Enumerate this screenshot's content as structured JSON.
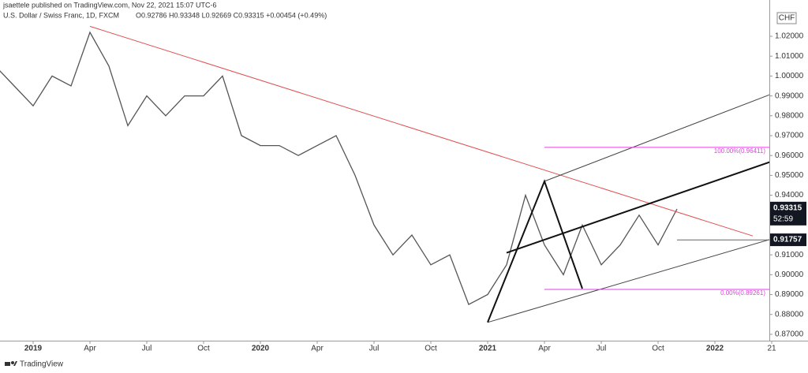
{
  "chart_data": {
    "type": "line",
    "title": "jsaettele published on TradingView.com, Nov 22, 2021 15:07 UTC-6",
    "subtitle": "U.S. Dollar / Swiss Franc, 1D, FXCM",
    "ohlc": "O0.92786 H0.93348 L0.92669 C0.93315 +0.00454 (+0.49%)",
    "currency": "CHF",
    "footer": "TradingView",
    "x": [
      "2018-11",
      "2018-12",
      "2019-01",
      "2019-02",
      "2019-03",
      "2019-04",
      "2019-05",
      "2019-06",
      "2019-07",
      "2019-08",
      "2019-09",
      "2019-10",
      "2019-11",
      "2019-12",
      "2020-01",
      "2020-02",
      "2020-03",
      "2020-04",
      "2020-05",
      "2020-06",
      "2020-07",
      "2020-08",
      "2020-09",
      "2020-10",
      "2020-11",
      "2020-12",
      "2021-01",
      "2021-02",
      "2021-03",
      "2021-04",
      "2021-05",
      "2021-06",
      "2021-07",
      "2021-08",
      "2021-09",
      "2021-10",
      "2021-11"
    ],
    "series": [
      {
        "color": "#555555",
        "values": [
          1.005,
          0.995,
          0.985,
          1.0,
          0.995,
          1.022,
          1.005,
          0.975,
          0.99,
          0.98,
          0.99,
          0.99,
          1.0,
          0.97,
          0.965,
          0.965,
          0.96,
          0.965,
          0.97,
          0.95,
          0.925,
          0.91,
          0.92,
          0.905,
          0.91,
          0.885,
          0.89,
          0.905,
          0.94,
          0.915,
          0.9,
          0.925,
          0.905,
          0.915,
          0.93,
          0.915,
          0.9331
        ]
      }
    ],
    "xlim": [
      "2018-11",
      "2022-05"
    ],
    "xticks": [
      {
        "value": "2019-01",
        "label": "2019"
      },
      {
        "value": "2019-04",
        "label": "Apr"
      },
      {
        "value": "2019-07",
        "label": "Jul"
      },
      {
        "value": "2019-10",
        "label": "Oct"
      },
      {
        "value": "2020-01",
        "label": "2020"
      },
      {
        "value": "2020-04",
        "label": "Apr"
      },
      {
        "value": "2020-07",
        "label": "Jul"
      },
      {
        "value": "2020-10",
        "label": "Oct"
      },
      {
        "value": "2021-01",
        "label": "2021"
      },
      {
        "value": "2021-04",
        "label": "Apr"
      },
      {
        "value": "2021-07",
        "label": "Jul"
      },
      {
        "value": "2021-10",
        "label": "Oct"
      },
      {
        "value": "2022-01",
        "label": "2022"
      },
      {
        "value": "2022-04",
        "label": "21"
      }
    ],
    "ylim": [
      0.8668,
      1.0343
    ],
    "yticks": [
      {
        "value": 0.87,
        "label": "0.87000"
      },
      {
        "value": 0.88,
        "label": "0.88000"
      },
      {
        "value": 0.89,
        "label": "0.89000"
      },
      {
        "value": 0.9,
        "label": "0.90000"
      },
      {
        "value": 0.91,
        "label": "0.91000"
      },
      {
        "value": 0.94,
        "label": "0.94000"
      },
      {
        "value": 0.95,
        "label": "0.95000"
      },
      {
        "value": 0.96,
        "label": "0.96000"
      },
      {
        "value": 0.97,
        "label": "0.97000"
      },
      {
        "value": 0.98,
        "label": "0.98000"
      },
      {
        "value": 0.99,
        "label": "0.99000"
      },
      {
        "value": 1.0,
        "label": "1.00000"
      },
      {
        "value": 1.01,
        "label": "1.01000"
      },
      {
        "value": 1.02,
        "label": "1.02000"
      }
    ],
    "last_price": 0.93315,
    "countdown": "52:59",
    "level_price": 0.91757,
    "trend_lines": [
      {
        "color": "#e05050",
        "width": 1,
        "x": [
          "2019-04",
          "2022-03"
        ],
        "values": [
          1.025,
          0.9195
        ]
      },
      {
        "color": "#444444",
        "width": 1,
        "x": [
          "2021-04",
          "2022-04"
        ],
        "values": [
          0.947,
          0.991
        ]
      },
      {
        "color": "#111111",
        "width": 2,
        "x": [
          "2021-02",
          "2022-04"
        ],
        "values": [
          0.911,
          0.957
        ]
      },
      {
        "color": "#444444",
        "width": 1,
        "x": [
          "2021-01",
          "2022-04"
        ],
        "values": [
          0.876,
          0.918
        ]
      },
      {
        "color": "#111111",
        "width": 2,
        "x": [
          "2021-01",
          "2021-04",
          "2021-06"
        ],
        "values": [
          0.876,
          0.947,
          0.893
        ]
      },
      {
        "color": "#666666",
        "width": 1,
        "x": [
          "2021-11",
          "2022-04"
        ],
        "values": [
          0.9175,
          0.9175
        ]
      }
    ],
    "fib_levels": [
      {
        "label": "100.00%(0.96411)",
        "value": 0.96411,
        "color": "#e040e0",
        "x": [
          "2021-04",
          "2022-04"
        ]
      },
      {
        "label": "0.00%(0.89261)",
        "value": 0.89261,
        "color": "#e040e0",
        "x": [
          "2021-04",
          "2022-04"
        ]
      }
    ]
  }
}
